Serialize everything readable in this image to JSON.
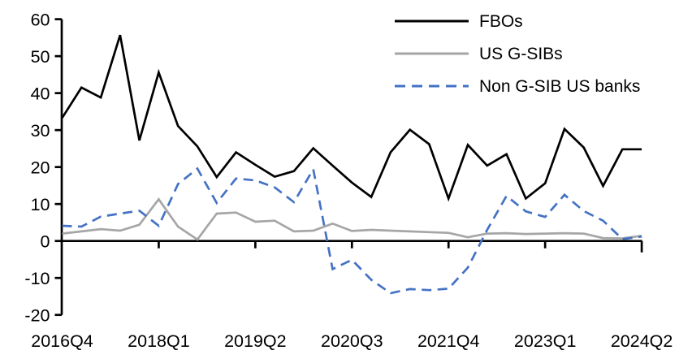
{
  "chart_data": {
    "type": "line",
    "title": "",
    "xlabel": "",
    "ylabel": "",
    "ylim": [
      -20,
      60
    ],
    "grid": false,
    "legend_position": "top-right",
    "categories": [
      "2016Q4",
      "2017Q1",
      "2017Q2",
      "2017Q3",
      "2017Q4",
      "2018Q1",
      "2018Q2",
      "2018Q3",
      "2018Q4",
      "2019Q1",
      "2019Q2",
      "2019Q3",
      "2019Q4",
      "2020Q1",
      "2020Q2",
      "2020Q3",
      "2020Q4",
      "2021Q1",
      "2021Q2",
      "2021Q3",
      "2021Q4",
      "2022Q1",
      "2022Q2",
      "2022Q3",
      "2022Q4",
      "2023Q1",
      "2023Q2",
      "2023Q3",
      "2023Q4",
      "2024Q1",
      "2024Q2"
    ],
    "x_tick_labels": [
      "2016Q4",
      "2018Q1",
      "2019Q2",
      "2020Q3",
      "2021Q4",
      "2023Q1",
      "2024Q2"
    ],
    "x_tick_indices": [
      0,
      5,
      10,
      15,
      20,
      25,
      30
    ],
    "y_ticks": [
      60,
      50,
      40,
      30,
      20,
      10,
      0,
      -10,
      -20
    ],
    "axis_color": "#000000",
    "series": [
      {
        "name": "FBOs",
        "color": "#000000",
        "style": "solid",
        "values": [
          33.3,
          41.5,
          38.8,
          55.7,
          27.2,
          45.6,
          31.1,
          25.6,
          17.3,
          24.0,
          20.6,
          17.4,
          18.9,
          25.1,
          20.4,
          15.8,
          11.9,
          24.0,
          30.1,
          26.2,
          11.5,
          26.0,
          20.4,
          23.5,
          11.5,
          15.6,
          30.3,
          25.3,
          14.9,
          24.8,
          24.8
        ]
      },
      {
        "name": "US G-SIBs",
        "color": "#A6A6A6",
        "style": "solid",
        "values": [
          2.0,
          2.6,
          3.2,
          2.8,
          4.4,
          11.3,
          3.9,
          0.4,
          7.4,
          7.7,
          5.2,
          5.5,
          2.6,
          2.8,
          4.7,
          2.7,
          3.0,
          2.8,
          2.6,
          2.4,
          2.2,
          1.0,
          2.0,
          2.1,
          1.9,
          2.0,
          2.1,
          2.0,
          0.8,
          0.7,
          1.4
        ]
      },
      {
        "name": "Non G-SIB US banks",
        "color": "#4472C4",
        "style": "dashed",
        "values": [
          4.1,
          3.9,
          6.6,
          7.4,
          8.2,
          4.1,
          15.4,
          19.6,
          10.3,
          16.9,
          16.4,
          14.5,
          10.5,
          19.4,
          -7.6,
          -5.1,
          -10.5,
          -14.1,
          -13.0,
          -13.3,
          -12.9,
          -7.2,
          3.0,
          12.2,
          8.0,
          6.5,
          12.5,
          8.1,
          5.5,
          0.5,
          1.2
        ]
      }
    ]
  }
}
